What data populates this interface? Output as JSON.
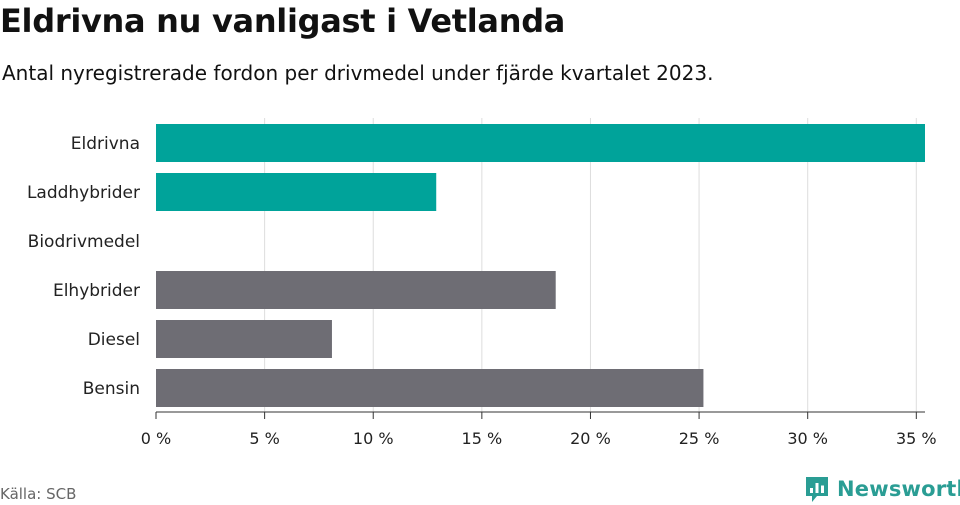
{
  "chart_data": {
    "type": "bar",
    "orientation": "horizontal",
    "title": "Eldrivna nu vanligast i Vetlanda",
    "subtitle": "Antal nyregistrerade fordon per drivmedel under fjärde kvartalet 2023.",
    "categories": [
      "Eldrivna",
      "Laddhybrider",
      "Biodrivmedel",
      "Elhybrider",
      "Diesel",
      "Bensin"
    ],
    "values": [
      35.4,
      12.9,
      0,
      18.4,
      8.1,
      25.2
    ],
    "bar_colors": [
      "#00a39a",
      "#00a39a",
      "#00a39a",
      "#6e6d74",
      "#6e6d74",
      "#6e6d74"
    ],
    "xlim": [
      0,
      35.4
    ],
    "xticks": [
      0,
      5,
      10,
      15,
      20,
      25,
      30,
      35
    ],
    "xtick_labels": [
      "0 %",
      "5 %",
      "10 %",
      "15 %",
      "20 %",
      "25 %",
      "30 %",
      "35 %"
    ],
    "grid": true
  },
  "footer": {
    "source": "Källa: SCB",
    "brand": "Newsworthy"
  },
  "colors": {
    "accent": "#00a39a",
    "other": "#6e6d74",
    "grid": "#dddddd",
    "brand": "#2a9d94"
  }
}
